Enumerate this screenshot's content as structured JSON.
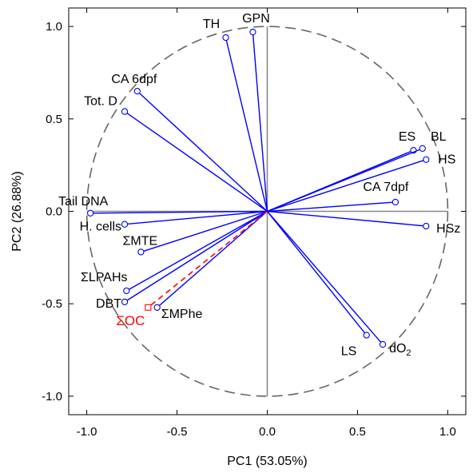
{
  "chart_data": {
    "type": "scatter",
    "subtype": "pca-correlation-circle",
    "title": "",
    "xlabel": "PC1 (53.05%)",
    "ylabel": "PC2 (26.88%)",
    "xlim": [
      -1.1,
      1.1
    ],
    "ylim": [
      -1.1,
      1.1
    ],
    "xticks": [
      "-1.0",
      "-0.5",
      "0.0",
      "0.5",
      "1.0"
    ],
    "yticks": [
      "-1.0",
      "-0.5",
      "0.0",
      "0.5",
      "1.0"
    ],
    "xtick_values": [
      -1.0,
      -0.5,
      0.0,
      0.5,
      1.0
    ],
    "ytick_values": [
      -1.0,
      -0.5,
      0.0,
      0.5,
      1.0
    ],
    "grid": false,
    "unit_circle": true,
    "colors": {
      "vectors": "#0000ff",
      "supplementary": "#ff0000",
      "circle": "#666666",
      "axes": "#888888"
    },
    "variables": [
      {
        "label": "TH",
        "x": -0.23,
        "y": 0.94
      },
      {
        "label": "GPN",
        "x": -0.08,
        "y": 0.97
      },
      {
        "label": "CA 6dpf",
        "x": -0.72,
        "y": 0.65
      },
      {
        "label": "Tot. D",
        "x": -0.79,
        "y": 0.54
      },
      {
        "label": "ES",
        "x": 0.81,
        "y": 0.33
      },
      {
        "label": "BL",
        "x": 0.86,
        "y": 0.34
      },
      {
        "label": "HS",
        "x": 0.88,
        "y": 0.28
      },
      {
        "label": "CA 7dpf",
        "x": 0.71,
        "y": 0.05
      },
      {
        "label": "HSz",
        "x": 0.88,
        "y": -0.08
      },
      {
        "label": "Tail DNA",
        "x": -0.98,
        "y": -0.01
      },
      {
        "label": "H. cells",
        "x": -0.79,
        "y": -0.07
      },
      {
        "label": "ΣMTE",
        "x": -0.7,
        "y": -0.22
      },
      {
        "label": "ΣLPAHs",
        "x": -0.78,
        "y": -0.43
      },
      {
        "label": "DBT",
        "x": -0.79,
        "y": -0.49
      },
      {
        "label": "ΣMPhe",
        "x": -0.61,
        "y": -0.52
      },
      {
        "label": "LS",
        "x": 0.55,
        "y": -0.67
      },
      {
        "label": "dO",
        "label_sub": "2",
        "x": 0.64,
        "y": -0.72
      }
    ],
    "supplementary": [
      {
        "label": "ΣOC",
        "x": -0.66,
        "y": -0.52
      }
    ]
  }
}
